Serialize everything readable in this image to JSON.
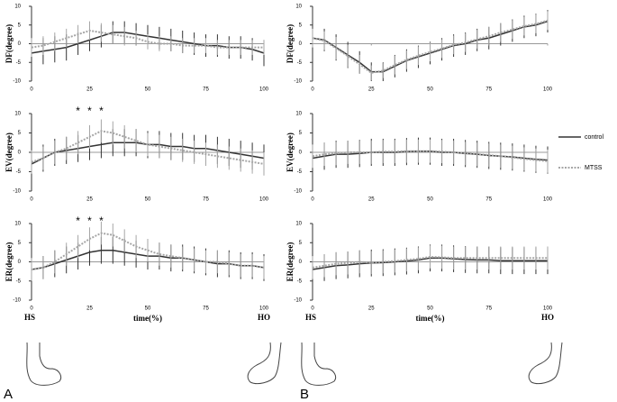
{
  "panels": [
    "A",
    "B"
  ],
  "chart_data": [
    {
      "type": "line",
      "ylabel": "DF(degree)",
      "x": [
        0,
        5,
        10,
        15,
        20,
        25,
        30,
        35,
        40,
        45,
        50,
        55,
        60,
        65,
        70,
        75,
        80,
        85,
        90,
        95,
        100
      ],
      "xlim": [
        0,
        100
      ],
      "ylim": [
        -10,
        10
      ],
      "xticks": [
        0,
        25,
        50,
        75,
        100
      ],
      "yticks": [
        -10,
        -5,
        0,
        5,
        10
      ],
      "series": [
        {
          "color": "#333333",
          "values": [
            -2.5,
            -2,
            -1.5,
            -1,
            0,
            1,
            2,
            3,
            3,
            2.5,
            2,
            1.5,
            1,
            0.5,
            0,
            -0.5,
            -0.5,
            -1,
            -1,
            -1.5,
            -2.5
          ],
          "errors": [
            3.5,
            3.5,
            3.5,
            3.5,
            3,
            3,
            3,
            3,
            3,
            3,
            3,
            3,
            3,
            3,
            3,
            3,
            3,
            3,
            3,
            3,
            3.5
          ]
        },
        {
          "color": "#a6a6a6",
          "values": [
            -1,
            -0.5,
            0.5,
            1.5,
            2.5,
            3.5,
            3,
            2.5,
            2,
            1.5,
            0.5,
            0,
            0,
            -0.5,
            -0.5,
            -0.5,
            -1,
            -1,
            -1,
            -1,
            -1
          ],
          "errors": [
            2.5,
            2.5,
            2.5,
            2.5,
            2.5,
            2.5,
            2.5,
            2.5,
            2.5,
            2,
            2,
            2,
            2,
            2,
            2,
            2,
            2,
            2,
            2,
            2,
            2
          ]
        }
      ]
    },
    {
      "type": "line",
      "ylabel": "DF(degree)",
      "x": [
        0,
        5,
        10,
        15,
        20,
        25,
        30,
        35,
        40,
        45,
        50,
        55,
        60,
        65,
        70,
        75,
        80,
        85,
        90,
        95,
        100
      ],
      "xlim": [
        0,
        100
      ],
      "ylim": [
        -10,
        10
      ],
      "xticks": [
        0,
        25,
        50,
        75,
        100
      ],
      "yticks": [
        -10,
        -5,
        0,
        5,
        10
      ],
      "series": [
        {
          "color": "#333333",
          "values": [
            1.5,
            1,
            -1,
            -3,
            -5,
            -7.5,
            -7.5,
            -6,
            -4.5,
            -3.5,
            -2.5,
            -1.5,
            -0.5,
            0,
            1,
            1.5,
            2.5,
            3.5,
            4.5,
            5,
            6
          ],
          "errors": [
            3,
            3,
            3.5,
            3.5,
            3,
            2.5,
            2.5,
            3,
            3,
            3,
            3,
            3,
            3,
            3,
            3,
            3,
            3,
            3,
            3,
            3,
            3
          ]
        },
        {
          "color": "#a6a6a6",
          "values": [
            1.5,
            0.8,
            -1.2,
            -3.3,
            -5.5,
            -7.8,
            -7.2,
            -5.7,
            -4.3,
            -3.2,
            -2.2,
            -1.3,
            -0.3,
            0.3,
            1.2,
            2,
            3,
            3.8,
            4.7,
            5.3,
            6.2
          ],
          "errors": [
            2.5,
            2.5,
            3,
            3,
            2.5,
            2,
            2,
            2.5,
            2.5,
            2.5,
            2.5,
            2.5,
            2.5,
            2.5,
            2.5,
            2.5,
            2.5,
            2.5,
            2.5,
            2.5,
            2.5
          ]
        }
      ]
    },
    {
      "type": "line",
      "ylabel": "EV(degree)",
      "x": [
        0,
        5,
        10,
        15,
        20,
        25,
        30,
        35,
        40,
        45,
        50,
        55,
        60,
        65,
        70,
        75,
        80,
        85,
        90,
        95,
        100
      ],
      "xlim": [
        0,
        100
      ],
      "ylim": [
        -10,
        10
      ],
      "xticks": [
        0,
        25,
        50,
        75,
        100
      ],
      "yticks": [
        -10,
        -5,
        0,
        5,
        10
      ],
      "annotations": [
        {
          "text": "*",
          "x": 20
        },
        {
          "text": "*",
          "x": 25
        },
        {
          "text": "*",
          "x": 30
        }
      ],
      "series": [
        {
          "color": "#333333",
          "values": [
            -3,
            -1.5,
            0,
            0.5,
            1,
            1.5,
            2,
            2.5,
            2.5,
            2.5,
            2,
            2,
            1.5,
            1.5,
            1,
            1,
            0.5,
            0,
            -0.5,
            -1,
            -1.5
          ],
          "errors": [
            3.5,
            3.5,
            3.5,
            3.5,
            3.5,
            3.5,
            3.5,
            3.5,
            3.5,
            3.5,
            3.5,
            3.5,
            3.5,
            3.5,
            3.5,
            3.5,
            3.5,
            3.5,
            3.5,
            3.5,
            3.5
          ]
        },
        {
          "color": "#a6a6a6",
          "values": [
            -2.5,
            -1.5,
            0,
            1,
            2.5,
            4,
            5.5,
            5,
            4,
            3,
            2,
            1.5,
            1,
            0.5,
            0,
            -0.5,
            -1,
            -1.5,
            -2,
            -2.5,
            -3
          ],
          "errors": [
            3,
            3,
            3,
            3,
            3,
            3,
            3,
            3,
            3,
            3,
            3,
            3,
            3,
            3,
            3,
            3,
            3,
            3,
            3,
            3,
            3
          ]
        }
      ]
    },
    {
      "type": "line",
      "ylabel": "EV(degree)",
      "x": [
        0,
        5,
        10,
        15,
        20,
        25,
        30,
        35,
        40,
        45,
        50,
        55,
        60,
        65,
        70,
        75,
        80,
        85,
        90,
        95,
        100
      ],
      "xlim": [
        0,
        100
      ],
      "ylim": [
        -10,
        10
      ],
      "xticks": [
        0,
        25,
        50,
        75,
        100
      ],
      "yticks": [
        -10,
        -5,
        0,
        5,
        10
      ],
      "legend": true,
      "series": [
        {
          "name": "control",
          "color": "#333333",
          "values": [
            -1.5,
            -1,
            -0.5,
            -0.5,
            -0.3,
            0,
            0,
            0,
            0.2,
            0.3,
            0.3,
            0,
            0,
            -0.3,
            -0.5,
            -0.8,
            -1,
            -1.2,
            -1.5,
            -1.8,
            -2
          ],
          "errors": [
            3.5,
            3.5,
            3.5,
            3.5,
            3.5,
            3.5,
            3.5,
            3.5,
            3.5,
            3.5,
            3.5,
            3.5,
            3.5,
            3.5,
            3.5,
            3.5,
            3.5,
            3.5,
            3.5,
            3.5,
            3.5
          ]
        },
        {
          "name": "MTSS",
          "color": "#a6a6a6",
          "values": [
            -1,
            -0.5,
            -0.3,
            0,
            0,
            0,
            0.2,
            0.2,
            0.3,
            0.3,
            0.3,
            0.2,
            0,
            -0.3,
            -0.5,
            -0.7,
            -1,
            -1.3,
            -1.7,
            -2,
            -2.3
          ],
          "errors": [
            3,
            3,
            3,
            3,
            3,
            3,
            3,
            3,
            3,
            3,
            3,
            3,
            3,
            3,
            3,
            3,
            3,
            3,
            3,
            3,
            3
          ]
        }
      ]
    },
    {
      "type": "line",
      "ylabel": "ER(degree)",
      "xlabel": "time(%)",
      "x_end_labels": [
        "HS",
        "HO"
      ],
      "x": [
        0,
        5,
        10,
        15,
        20,
        25,
        30,
        35,
        40,
        45,
        50,
        55,
        60,
        65,
        70,
        75,
        80,
        85,
        90,
        95,
        100
      ],
      "xlim": [
        0,
        100
      ],
      "ylim": [
        -10,
        10
      ],
      "xticks": [
        0,
        25,
        50,
        75,
        100
      ],
      "yticks": [
        -10,
        -5,
        0,
        5,
        10
      ],
      "annotations": [
        {
          "text": "*",
          "x": 20
        },
        {
          "text": "*",
          "x": 25
        },
        {
          "text": "*",
          "x": 30
        }
      ],
      "series": [
        {
          "color": "#333333",
          "values": [
            -2,
            -1.5,
            -0.5,
            0.5,
            1.5,
            2.5,
            3,
            3,
            2.5,
            2,
            1.5,
            1.5,
            1,
            1,
            0.5,
            0,
            -0.5,
            -0.5,
            -1,
            -1,
            -1.5
          ],
          "errors": [
            3,
            3,
            3.5,
            3.5,
            3.5,
            3.5,
            3.5,
            3.5,
            3.5,
            3.5,
            3.5,
            3.5,
            3.5,
            3.5,
            3.5,
            3.5,
            3.5,
            3.5,
            3.5,
            3.5,
            3.5
          ]
        },
        {
          "color": "#a6a6a6",
          "values": [
            -2,
            -1.5,
            0,
            2,
            4,
            6,
            7.5,
            7,
            5.5,
            4,
            3,
            2,
            1.5,
            1,
            0.5,
            0,
            0,
            -0.5,
            -1,
            -1,
            -1.5
          ],
          "errors": [
            3,
            3,
            3,
            3,
            3,
            3,
            3,
            3,
            3,
            3,
            3,
            3,
            3,
            3,
            3,
            3,
            3,
            3,
            3,
            3,
            3
          ]
        }
      ]
    },
    {
      "type": "line",
      "ylabel": "ER(degree)",
      "xlabel": "time(%)",
      "x_end_labels": [
        "HS",
        "HO"
      ],
      "x": [
        0,
        5,
        10,
        15,
        20,
        25,
        30,
        35,
        40,
        45,
        50,
        55,
        60,
        65,
        70,
        75,
        80,
        85,
        90,
        95,
        100
      ],
      "xlim": [
        0,
        100
      ],
      "ylim": [
        -10,
        10
      ],
      "xticks": [
        0,
        25,
        50,
        75,
        100
      ],
      "yticks": [
        -10,
        -5,
        0,
        5,
        10
      ],
      "series": [
        {
          "color": "#333333",
          "values": [
            -2,
            -1.5,
            -1,
            -0.8,
            -0.5,
            -0.3,
            -0.2,
            0,
            0.2,
            0.5,
            1,
            1,
            0.8,
            0.6,
            0.5,
            0.5,
            0.3,
            0.3,
            0.3,
            0.3,
            0.3
          ],
          "errors": [
            3.5,
            3.5,
            3.5,
            3.5,
            3.5,
            3.5,
            3.5,
            3.5,
            3.5,
            3.5,
            3.5,
            3.5,
            3.5,
            3.5,
            3.5,
            3.5,
            3.5,
            3.5,
            3.5,
            3.5,
            3.5
          ]
        },
        {
          "color": "#a6a6a6",
          "values": [
            -1.5,
            -1,
            -0.5,
            -0.3,
            0,
            -0.2,
            0,
            0.2,
            0.5,
            0.8,
            1.3,
            1.2,
            1,
            1,
            1,
            1,
            1,
            1,
            1,
            1,
            1
          ],
          "errors": [
            3,
            3,
            3,
            3,
            3,
            3,
            3,
            3,
            3,
            3,
            3,
            3,
            3,
            3,
            3,
            3,
            3,
            3,
            3,
            3,
            3
          ]
        }
      ]
    }
  ]
}
